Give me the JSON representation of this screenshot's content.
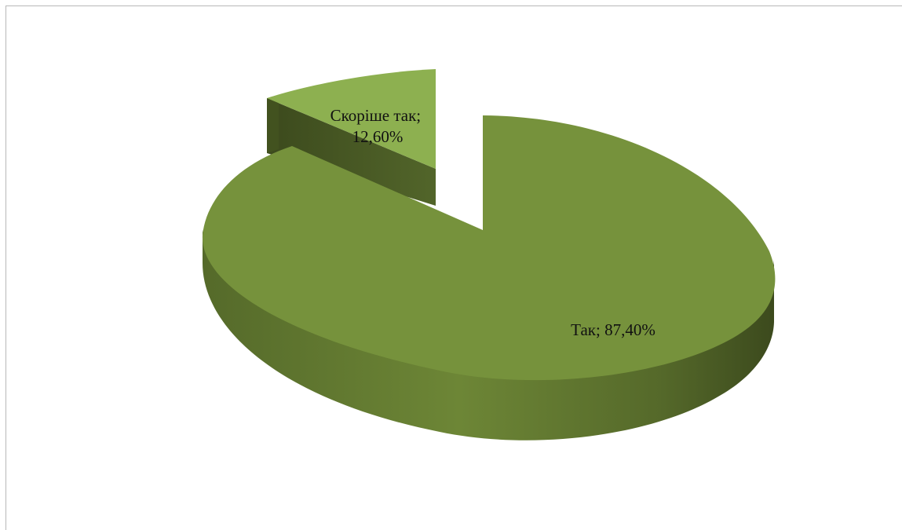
{
  "chart_data": {
    "type": "pie",
    "title": "",
    "style": "3d-exploded",
    "categories": [
      "Так",
      "Скоріше так"
    ],
    "values": [
      87.4,
      12.6
    ],
    "unit": "%",
    "labels": [
      {
        "category": "Так",
        "text_lines": [
          "Так; 87,40%"
        ]
      },
      {
        "category": "Скоріше так",
        "text_lines": [
          "Скоріше так;",
          "12,60%"
        ]
      }
    ],
    "colors": {
      "main_top": "#76923c",
      "main_side": "#4f6228",
      "small_top": "#8db050",
      "small_side": "#4a5c26"
    },
    "legend": "none"
  }
}
